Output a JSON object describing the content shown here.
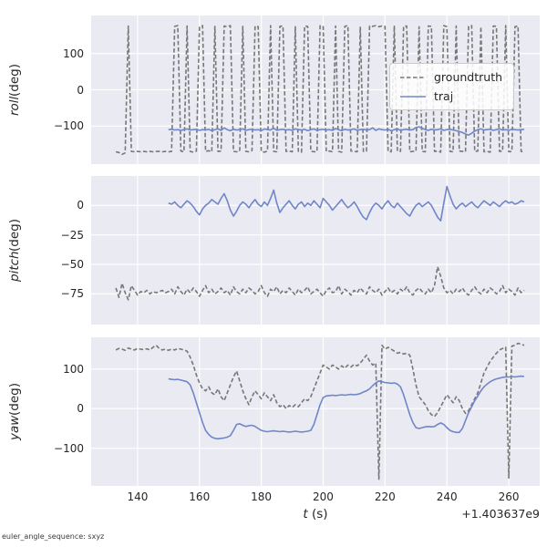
{
  "figure": {
    "xlabel_var": "t",
    "xlabel_unit": " (s)",
    "x_offset_text": "+1.403637e9",
    "footer_text": "euler_angle_sequence: sxyz",
    "xlim": [
      125,
      270
    ],
    "xticks": [
      140,
      160,
      180,
      200,
      220,
      240,
      260
    ],
    "colors": {
      "groundtruth": "#777777",
      "traj": "#7086c8",
      "axes_bg": "#eaeaf2",
      "grid": "#ffffff",
      "text": "#262626"
    },
    "legend": {
      "entries": [
        {
          "label": "groundtruth",
          "style": "dashed"
        },
        {
          "label": "traj",
          "style": "solid"
        }
      ]
    }
  },
  "chart_data": [
    {
      "type": "line",
      "ylabel_var": "roll",
      "ylabel_unit": " (deg)",
      "ylim": [
        -205,
        205
      ],
      "yticks": [
        100,
        0,
        -100
      ],
      "series": [
        {
          "name": "groundtruth",
          "style": "dashed",
          "t0": 133,
          "dt": 1,
          "values": [
            -171,
            -173,
            -178,
            -174,
            176,
            -170,
            -171,
            -170,
            -171,
            -170,
            -171,
            -170,
            -171,
            -170,
            -170,
            -171,
            -170,
            -171,
            -170,
            175,
            177,
            -169,
            -171,
            176,
            -170,
            -172,
            -169,
            174,
            177,
            -170,
            -168,
            -171,
            175,
            -170,
            -169,
            176,
            174,
            177,
            -170,
            -171,
            -169,
            175,
            -170,
            -171,
            -168,
            176,
            174,
            -170,
            -172,
            -169,
            177,
            -170,
            -171,
            175,
            176,
            -170,
            -169,
            -171,
            174,
            -170,
            -172,
            176,
            175,
            -169,
            -171,
            -170,
            177,
            174,
            -170,
            -169,
            -171,
            176,
            -170,
            -172,
            175,
            177,
            -169,
            -170,
            -171,
            174,
            -170,
            -169,
            176,
            175,
            177,
            174,
            176,
            175,
            -170,
            -171,
            177,
            -169,
            -170,
            175,
            176,
            -171,
            -170,
            -169,
            174,
            -170,
            -171,
            176,
            175,
            -170,
            -169,
            -172,
            177,
            174,
            -170,
            -171,
            176,
            -169,
            -170,
            -171,
            175,
            177,
            -170,
            -169,
            174,
            -171,
            -170,
            -172,
            176,
            175,
            -170,
            -169,
            177,
            -171,
            -170,
            174,
            176,
            -170,
            -171
          ]
        },
        {
          "name": "traj",
          "style": "solid",
          "t0": 150,
          "dt": 1,
          "values": [
            -110,
            -109,
            -111,
            -110,
            -112,
            -110,
            -108,
            -111,
            -110,
            -109,
            -112,
            -110,
            -111,
            -109,
            -113,
            -110,
            -108,
            -112,
            -105,
            -110,
            -113,
            -109,
            -111,
            -110,
            -108,
            -112,
            -110,
            -109,
            -111,
            -110,
            -113,
            -108,
            -110,
            -111,
            -106,
            -112,
            -110,
            -109,
            -111,
            -110,
            -112,
            -108,
            -110,
            -111,
            -109,
            -113,
            -110,
            -108,
            -112,
            -110,
            -109,
            -111,
            -110,
            -112,
            -107,
            -110,
            -113,
            -109,
            -111,
            -110,
            -108,
            -112,
            -110,
            -109,
            -111,
            -110,
            -105,
            -112,
            -108,
            -110,
            -111,
            -109,
            -113,
            -110,
            -108,
            -112,
            -110,
            -109,
            -111,
            -110,
            -104,
            -102,
            -106,
            -110,
            -112,
            -109,
            -111,
            -110,
            -108,
            -112,
            -110,
            -109,
            -111,
            -113,
            -115,
            -118,
            -122,
            -125,
            -120,
            -114,
            -110,
            -108,
            -111,
            -110,
            -109,
            -112,
            -110,
            -108,
            -111,
            -110,
            -112,
            -109,
            -110,
            -111,
            -110,
            -109
          ]
        }
      ]
    },
    {
      "type": "line",
      "ylabel_var": "pitch",
      "ylabel_unit": " (deg)",
      "ylim": [
        -101,
        25
      ],
      "yticks": [
        0,
        -25,
        -50,
        -75
      ],
      "series": [
        {
          "name": "groundtruth",
          "style": "dashed",
          "t0": 133,
          "dt": 1,
          "values": [
            -70,
            -78,
            -66,
            -74,
            -80,
            -68,
            -72,
            -76,
            -73,
            -74,
            -72,
            -75,
            -73,
            -74,
            -73,
            -72,
            -74,
            -73,
            -71,
            -75,
            -69,
            -73,
            -76,
            -71,
            -74,
            -70,
            -73,
            -77,
            -72,
            -68,
            -74,
            -71,
            -75,
            -73,
            -70,
            -74,
            -72,
            -76,
            -69,
            -73,
            -75,
            -71,
            -74,
            -70,
            -72,
            -75,
            -73,
            -68,
            -74,
            -77,
            -71,
            -73,
            -69,
            -75,
            -72,
            -74,
            -70,
            -73,
            -76,
            -71,
            -74,
            -72,
            -69,
            -75,
            -73,
            -71,
            -74,
            -77,
            -72,
            -70,
            -74,
            -73,
            -68,
            -75,
            -71,
            -73,
            -76,
            -72,
            -74,
            -70,
            -73,
            -75,
            -69,
            -72,
            -74,
            -71,
            -76,
            -73,
            -70,
            -74,
            -72,
            -75,
            -71,
            -73,
            -69,
            -74,
            -76,
            -72,
            -70,
            -73,
            -75,
            -71,
            -74,
            -68,
            -52,
            -60,
            -70,
            -74,
            -72,
            -75,
            -71,
            -73,
            -70,
            -74,
            -76,
            -72,
            -69,
            -73,
            -75,
            -71,
            -74,
            -70,
            -72,
            -75,
            -73,
            -68,
            -74,
            -71,
            -73,
            -76,
            -70,
            -74,
            -72
          ]
        },
        {
          "name": "traj",
          "style": "solid",
          "t0": 150,
          "dt": 1,
          "values": [
            2,
            1,
            3,
            0,
            -2,
            1,
            4,
            2,
            -1,
            -5,
            -8,
            -3,
            0,
            2,
            5,
            3,
            1,
            6,
            10,
            4,
            -4,
            -9,
            -5,
            0,
            3,
            1,
            -2,
            2,
            5,
            1,
            -1,
            3,
            0,
            6,
            13,
            2,
            -6,
            -2,
            1,
            4,
            0,
            -3,
            1,
            3,
            -1,
            2,
            0,
            4,
            1,
            -2,
            6,
            3,
            0,
            -4,
            -1,
            2,
            5,
            1,
            -2,
            0,
            3,
            -1,
            -6,
            -10,
            -12,
            -6,
            -1,
            2,
            0,
            -3,
            1,
            4,
            0,
            -2,
            2,
            -1,
            -4,
            -7,
            -9,
            -4,
            0,
            2,
            -1,
            1,
            3,
            0,
            -5,
            -10,
            -13,
            2,
            16,
            8,
            1,
            -3,
            0,
            2,
            -1,
            1,
            3,
            0,
            -2,
            1,
            4,
            2,
            0,
            3,
            1,
            -1,
            2,
            4,
            2,
            3,
            1,
            2,
            4,
            3
          ]
        }
      ]
    },
    {
      "type": "line",
      "ylabel_var": "yaw",
      "ylabel_unit": " (deg)",
      "ylim": [
        -195,
        180
      ],
      "yticks": [
        100,
        0,
        -100
      ],
      "series": [
        {
          "name": "groundtruth",
          "style": "dashed",
          "t0": 133,
          "dt": 1,
          "values": [
            148,
            152,
            150,
            147,
            153,
            150,
            148,
            152,
            150,
            149,
            151,
            148,
            155,
            160,
            152,
            148,
            150,
            147,
            150,
            148,
            152,
            150,
            148,
            145,
            130,
            110,
            85,
            65,
            50,
            45,
            55,
            40,
            35,
            50,
            30,
            20,
            40,
            60,
            80,
            95,
            70,
            45,
            25,
            10,
            30,
            45,
            35,
            25,
            40,
            30,
            20,
            35,
            15,
            5,
            10,
            0,
            8,
            3,
            10,
            5,
            15,
            25,
            20,
            30,
            50,
            70,
            90,
            110,
            105,
            100,
            110,
            105,
            100,
            108,
            102,
            110,
            105,
            112,
            108,
            115,
            125,
            135,
            120,
            110,
            115,
            -178,
            160,
            150,
            155,
            150,
            145,
            140,
            142,
            138,
            140,
            135,
            100,
            60,
            30,
            20,
            10,
            -5,
            -15,
            -20,
            -10,
            5,
            20,
            35,
            25,
            15,
            30,
            20,
            0,
            -12,
            -5,
            10,
            25,
            40,
            65,
            90,
            105,
            120,
            130,
            140,
            148,
            152,
            155,
            -175,
            158,
            160,
            165,
            162,
            160
          ]
        },
        {
          "name": "traj",
          "style": "solid",
          "t0": 150,
          "dt": 1,
          "values": [
            75,
            74,
            73,
            74,
            72,
            70,
            68,
            60,
            40,
            15,
            -10,
            -35,
            -55,
            -65,
            -72,
            -75,
            -76,
            -75,
            -74,
            -72,
            -68,
            -55,
            -40,
            -38,
            -42,
            -45,
            -43,
            -42,
            -45,
            -50,
            -55,
            -57,
            -58,
            -57,
            -56,
            -57,
            -58,
            -57,
            -58,
            -59,
            -58,
            -57,
            -58,
            -59,
            -58,
            -57,
            -55,
            -40,
            -15,
            10,
            28,
            32,
            33,
            34,
            33,
            34,
            35,
            34,
            35,
            36,
            35,
            36,
            38,
            42,
            45,
            50,
            58,
            65,
            70,
            68,
            66,
            65,
            64,
            65,
            62,
            55,
            35,
            10,
            -15,
            -35,
            -48,
            -50,
            -48,
            -46,
            -45,
            -46,
            -45,
            -40,
            -36,
            -40,
            -48,
            -55,
            -58,
            -60,
            -60,
            -50,
            -30,
            -10,
            5,
            20,
            32,
            45,
            55,
            62,
            68,
            72,
            75,
            77,
            79,
            80,
            80,
            81,
            80,
            81,
            82,
            81
          ]
        }
      ]
    }
  ]
}
